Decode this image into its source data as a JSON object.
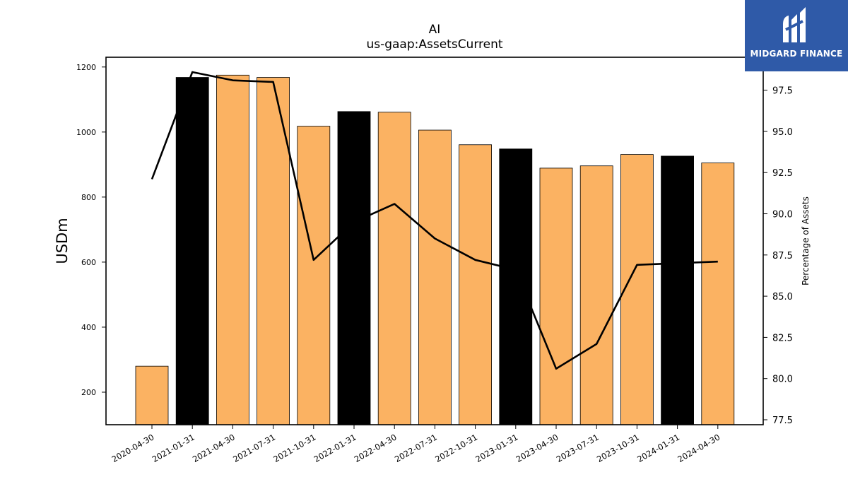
{
  "chart_data": {
    "type": "bar",
    "title": "AI",
    "subtitle": "us-gaap:AssetsCurrent",
    "ylabel": "USDm",
    "y2label": "Percentage of Assets",
    "categories": [
      "2020-04-30",
      "2021-01-31",
      "2021-04-30",
      "2021-07-31",
      "2021-10-31",
      "2022-01-31",
      "2022-04-30",
      "2022-07-31",
      "2022-10-31",
      "2023-01-31",
      "2023-04-30",
      "2023-07-31",
      "2023-10-31",
      "2024-01-31",
      "2024-04-30"
    ],
    "series": [
      {
        "type": "bar",
        "values": [
          280,
          1168,
          1175,
          1168,
          1018,
          1063,
          1061,
          1006,
          961,
          948,
          889,
          896,
          931,
          926,
          905
        ],
        "highlight": [
          false,
          true,
          false,
          false,
          false,
          true,
          false,
          false,
          false,
          true,
          false,
          false,
          false,
          true,
          false
        ],
        "color": "#fbb262",
        "highlight_color": "#000000",
        "axis": "left"
      },
      {
        "type": "line",
        "values": [
          92.1,
          98.6,
          98.1,
          98.0,
          87.2,
          89.5,
          90.6,
          88.5,
          87.2,
          86.6,
          80.6,
          82.1,
          86.9,
          87.0,
          87.1
        ],
        "color": "#000000",
        "axis": "right"
      }
    ],
    "ylim": [
      100,
      1230
    ],
    "y2lim": [
      77.2,
      99.5
    ],
    "yticks": [
      200,
      400,
      600,
      800,
      1000,
      1200
    ],
    "y2ticks": [
      "77.5",
      "80.0",
      "82.5",
      "85.0",
      "87.5",
      "90.0",
      "92.5",
      "95.0",
      "97.5"
    ],
    "grid": false
  },
  "logo": {
    "text": "MIDGARD FINANCE",
    "color": "#2f5aa8"
  }
}
